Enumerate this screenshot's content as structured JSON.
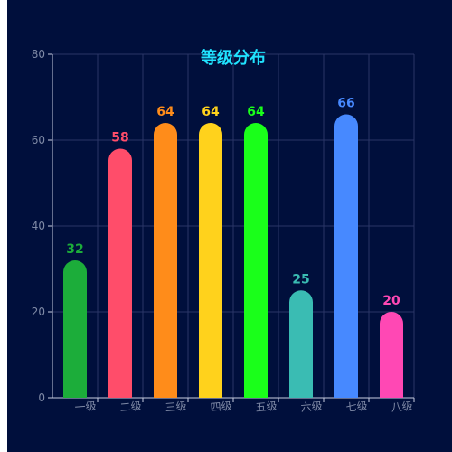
{
  "chart_data": {
    "type": "bar",
    "title": "等级分布",
    "categories": [
      "一级",
      "二级",
      "三级",
      "四级",
      "五级",
      "六级",
      "七级",
      "八级"
    ],
    "values": [
      32,
      58,
      64,
      64,
      64,
      25,
      66,
      20
    ],
    "colors": [
      "#1cad3a",
      "#ff4d6a",
      "#ff8c1a",
      "#ffd21c",
      "#1aff1a",
      "#3abcb3",
      "#4789ff",
      "#ff48b4"
    ],
    "ylim": [
      0,
      80
    ],
    "yticks": [
      0,
      20,
      40,
      60,
      80
    ],
    "grid": true,
    "xlabel": "",
    "ylabel": ""
  },
  "colors": {
    "background": "#000f3c",
    "grid": "#2a3566",
    "axis": "#c7cce0",
    "tick_text": "#7f8aa6",
    "title": "#20e3ff"
  }
}
